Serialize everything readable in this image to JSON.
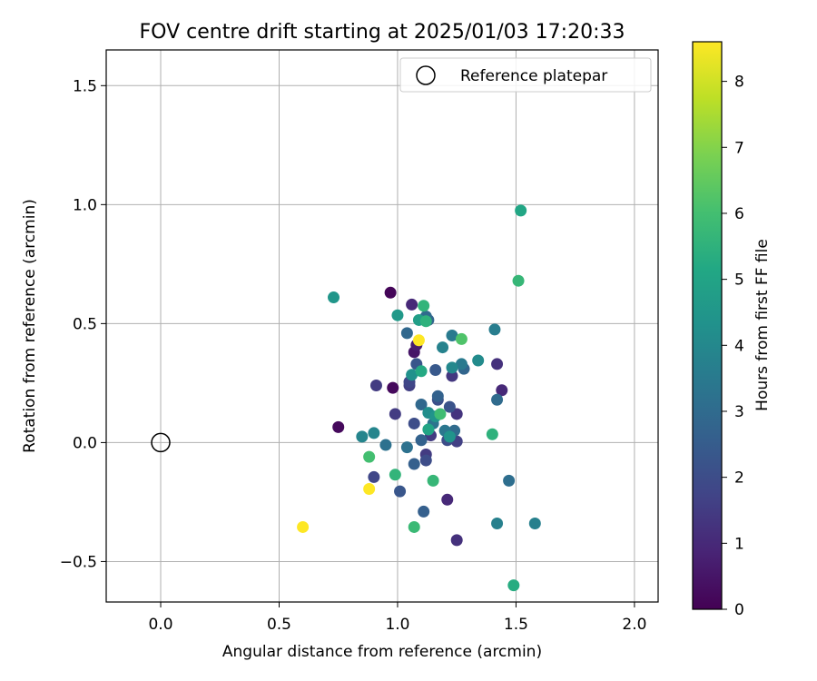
{
  "chart_data": {
    "type": "scatter",
    "title": "FOV centre drift starting at 2025/01/03 17:20:33",
    "xlabel": "Angular distance from reference (arcmin)",
    "ylabel": "Rotation from reference (arcmin)",
    "xlim": [
      -0.23,
      2.1
    ],
    "ylim": [
      -0.67,
      1.65
    ],
    "xticks": [
      0.0,
      0.5,
      1.0,
      1.5,
      2.0
    ],
    "xtick_labels": [
      "0.0",
      "0.5",
      "1.0",
      "1.5",
      "2.0"
    ],
    "yticks": [
      -0.5,
      0.0,
      0.5,
      1.0,
      1.5
    ],
    "ytick_labels": [
      "−0.5",
      "0.0",
      "0.5",
      "1.0",
      "1.5"
    ],
    "grid": true,
    "legend": {
      "placement": "upper right",
      "entries": [
        "Reference platepar"
      ]
    },
    "reference_point": {
      "x": 0.0,
      "y": 0.0,
      "marker": "open circle"
    },
    "colorbar": {
      "label": "Hours from first FF file",
      "colormap": "viridis",
      "range": [
        0,
        8.6
      ],
      "ticks": [
        0,
        1,
        2,
        3,
        4,
        5,
        6,
        7,
        8
      ],
      "tick_labels": [
        "0",
        "1",
        "2",
        "3",
        "4",
        "5",
        "6",
        "7",
        "8"
      ]
    },
    "points": [
      {
        "x": 0.97,
        "y": 0.63,
        "h": 0.1
      },
      {
        "x": 0.98,
        "y": 0.23,
        "h": 0.2
      },
      {
        "x": 0.75,
        "y": 0.065,
        "h": 0.2
      },
      {
        "x": 1.07,
        "y": 0.38,
        "h": 0.5
      },
      {
        "x": 1.08,
        "y": 0.41,
        "h": 0.7
      },
      {
        "x": 1.06,
        "y": 0.58,
        "h": 1.0
      },
      {
        "x": 1.44,
        "y": 0.22,
        "h": 1.0
      },
      {
        "x": 1.42,
        "y": 0.33,
        "h": 1.2
      },
      {
        "x": 1.21,
        "y": -0.24,
        "h": 1.0
      },
      {
        "x": 1.25,
        "y": -0.41,
        "h": 1.2
      },
      {
        "x": 1.25,
        "y": 0.12,
        "h": 1.3
      },
      {
        "x": 1.23,
        "y": 0.28,
        "h": 1.4
      },
      {
        "x": 0.91,
        "y": 0.24,
        "h": 1.5
      },
      {
        "x": 0.99,
        "y": 0.12,
        "h": 1.5
      },
      {
        "x": 1.12,
        "y": -0.05,
        "h": 1.5
      },
      {
        "x": 1.14,
        "y": 0.03,
        "h": 1.5
      },
      {
        "x": 1.25,
        "y": 0.005,
        "h": 1.6
      },
      {
        "x": 1.05,
        "y": 0.24,
        "h": 1.6
      },
      {
        "x": 0.9,
        "y": -0.145,
        "h": 1.8
      },
      {
        "x": 1.05,
        "y": 0.255,
        "h": 1.8
      },
      {
        "x": 1.12,
        "y": -0.075,
        "h": 2.0
      },
      {
        "x": 1.07,
        "y": 0.08,
        "h": 2.0
      },
      {
        "x": 1.21,
        "y": 0.01,
        "h": 2.0
      },
      {
        "x": 1.17,
        "y": 0.18,
        "h": 2.1
      },
      {
        "x": 1.22,
        "y": 0.15,
        "h": 2.2
      },
      {
        "x": 1.08,
        "y": 0.33,
        "h": 2.3
      },
      {
        "x": 1.01,
        "y": -0.205,
        "h": 2.3
      },
      {
        "x": 1.16,
        "y": 0.305,
        "h": 2.4
      },
      {
        "x": 1.11,
        "y": -0.29,
        "h": 2.6
      },
      {
        "x": 1.07,
        "y": -0.09,
        "h": 2.6
      },
      {
        "x": 1.1,
        "y": 0.01,
        "h": 2.7
      },
      {
        "x": 1.17,
        "y": 0.195,
        "h": 2.7
      },
      {
        "x": 1.13,
        "y": 0.515,
        "h": 2.8
      },
      {
        "x": 1.28,
        "y": 0.31,
        "h": 2.8
      },
      {
        "x": 1.04,
        "y": 0.46,
        "h": 2.9
      },
      {
        "x": 1.1,
        "y": 0.16,
        "h": 2.9
      },
      {
        "x": 1.12,
        "y": 0.53,
        "h": 3.0
      },
      {
        "x": 1.24,
        "y": 0.05,
        "h": 3.0
      },
      {
        "x": 1.42,
        "y": 0.18,
        "h": 3.0
      },
      {
        "x": 1.47,
        "y": -0.16,
        "h": 3.1
      },
      {
        "x": 0.95,
        "y": -0.01,
        "h": 3.2
      },
      {
        "x": 1.04,
        "y": -0.02,
        "h": 3.2
      },
      {
        "x": 1.15,
        "y": 0.08,
        "h": 3.3
      },
      {
        "x": 1.2,
        "y": 0.05,
        "h": 3.4
      },
      {
        "x": 1.23,
        "y": 0.45,
        "h": 3.5
      },
      {
        "x": 1.27,
        "y": 0.33,
        "h": 3.5
      },
      {
        "x": 1.41,
        "y": 0.475,
        "h": 3.6
      },
      {
        "x": 1.42,
        "y": -0.34,
        "h": 3.7
      },
      {
        "x": 1.58,
        "y": -0.34,
        "h": 3.7
      },
      {
        "x": 1.19,
        "y": 0.4,
        "h": 3.8
      },
      {
        "x": 0.9,
        "y": 0.04,
        "h": 3.9
      },
      {
        "x": 0.85,
        "y": 0.025,
        "h": 3.9
      },
      {
        "x": 1.23,
        "y": 0.315,
        "h": 4.0
      },
      {
        "x": 1.34,
        "y": 0.345,
        "h": 4.1
      },
      {
        "x": 1.13,
        "y": 0.125,
        "h": 4.2
      },
      {
        "x": 1.06,
        "y": 0.285,
        "h": 4.3
      },
      {
        "x": 1.22,
        "y": 0.025,
        "h": 4.4
      },
      {
        "x": 1.16,
        "y": 0.11,
        "h": 4.4
      },
      {
        "x": 0.73,
        "y": 0.61,
        "h": 4.5
      },
      {
        "x": 1.0,
        "y": 0.535,
        "h": 4.6
      },
      {
        "x": 1.09,
        "y": 0.515,
        "h": 4.8
      },
      {
        "x": 1.52,
        "y": 0.975,
        "h": 5.1
      },
      {
        "x": 1.13,
        "y": 0.055,
        "h": 5.0
      },
      {
        "x": 1.1,
        "y": 0.3,
        "h": 5.2
      },
      {
        "x": 1.49,
        "y": -0.6,
        "h": 5.3
      },
      {
        "x": 1.12,
        "y": 0.51,
        "h": 5.5
      },
      {
        "x": 1.4,
        "y": 0.035,
        "h": 5.5
      },
      {
        "x": 1.11,
        "y": 0.575,
        "h": 5.6
      },
      {
        "x": 0.99,
        "y": -0.135,
        "h": 5.6
      },
      {
        "x": 1.15,
        "y": -0.16,
        "h": 5.7
      },
      {
        "x": 1.51,
        "y": 0.68,
        "h": 5.7
      },
      {
        "x": 1.07,
        "y": -0.355,
        "h": 5.8
      },
      {
        "x": 1.18,
        "y": 0.12,
        "h": 5.9
      },
      {
        "x": 0.88,
        "y": -0.06,
        "h": 6.0
      },
      {
        "x": 1.27,
        "y": 0.435,
        "h": 6.2
      },
      {
        "x": 1.09,
        "y": 0.43,
        "h": 8.6
      },
      {
        "x": 0.88,
        "y": -0.195,
        "h": 8.6
      },
      {
        "x": 0.6,
        "y": -0.355,
        "h": 8.6
      }
    ]
  }
}
